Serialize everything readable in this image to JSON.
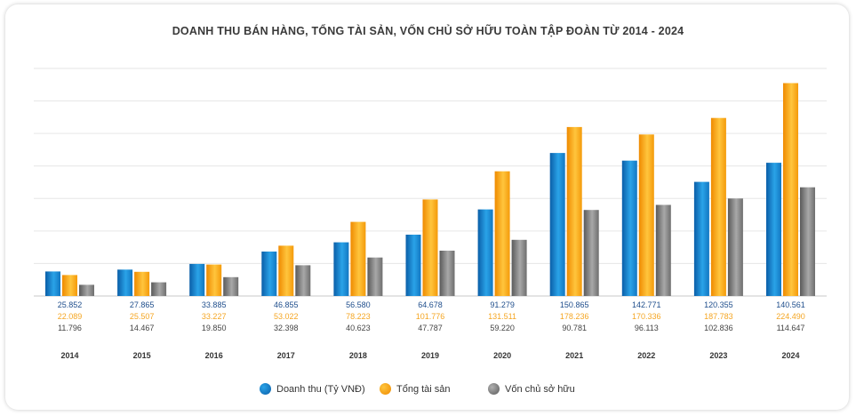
{
  "chart_data": {
    "type": "bar",
    "title": "DOANH THU BÁN HÀNG, TỔNG TÀI SẢN, VỐN CHỦ SỞ HỮU TOÀN TẬP ĐOÀN TỪ 2014 - 2024",
    "categories": [
      "2014",
      "2015",
      "2016",
      "2017",
      "2018",
      "2019",
      "2020",
      "2021",
      "2022",
      "2023",
      "2024"
    ],
    "series": [
      {
        "name": "Doanh thu (Tỷ VNĐ)",
        "color": "#1f8fd6",
        "values": [
          25852,
          27865,
          33885,
          46855,
          56580,
          64678,
          91279,
          150865,
          142771,
          120355,
          140561
        ],
        "labels": [
          "25.852",
          "27.865",
          "33.885",
          "46.855",
          "56.580",
          "64.678",
          "91.279",
          "150.865",
          "142.771",
          "120.355",
          "140.561"
        ]
      },
      {
        "name": "Tổng tài sản",
        "color": "#f7a21b",
        "values": [
          22089,
          25507,
          33227,
          53022,
          78223,
          101776,
          131511,
          178236,
          170336,
          187783,
          224490
        ],
        "labels": [
          "22.089",
          "25.507",
          "33.227",
          "53.022",
          "78.223",
          "101.776",
          "131.511",
          "178.236",
          "170.336",
          "187.783",
          "224.490"
        ]
      },
      {
        "name": "Vốn chủ sở hữu",
        "color": "#8a8a8a",
        "values": [
          11796,
          14467,
          19850,
          32398,
          40623,
          47787,
          59220,
          90781,
          96113,
          102836,
          114647
        ],
        "labels": [
          "11.796",
          "14.467",
          "19.850",
          "32.398",
          "40.623",
          "47.787",
          "59.220",
          "90.781",
          "96.113",
          "102.836",
          "114.647"
        ]
      }
    ],
    "ylim": [
      0,
      240000
    ],
    "grid": true,
    "legend_position": "bottom",
    "label_colors": [
      "#1f4e8c",
      "#f5a623",
      "#444444"
    ]
  }
}
